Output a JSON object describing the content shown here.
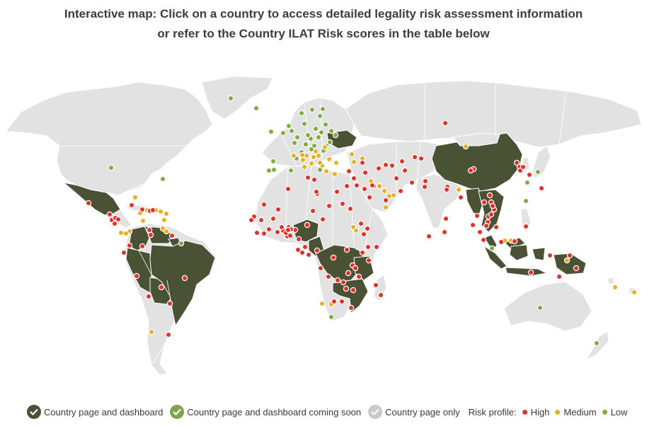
{
  "title": {
    "line1": "Interactive map: Click on a country to access detailed legality risk assessment information",
    "line2": "or refer to the Country ILAT Risk scores in the table below"
  },
  "legend": {
    "dashboard": {
      "label": "Country page and dashboard",
      "color": "#4a5235",
      "icon": "check-circle-icon"
    },
    "coming_soon": {
      "label": "Country page and dashboard coming soon",
      "color": "#7fa34e",
      "icon": "check-circle-icon"
    },
    "page_only": {
      "label": "Country page only",
      "color": "#c9c9c9",
      "icon": "check-circle-icon"
    },
    "risk_label": "Risk profile:",
    "high": {
      "label": "High",
      "color": "#e0312a"
    },
    "medium": {
      "label": "Medium",
      "color": "#e8b020"
    },
    "low": {
      "label": "Low",
      "color": "#7fae3f"
    }
  },
  "map": {
    "land_color": "#e2e2e2",
    "dashboard_color": "#4a5235",
    "dashboard_countries": [
      "Mexico",
      "Colombia",
      "Venezuela",
      "Guyana",
      "Peru",
      "Bolivia",
      "Brazil",
      "Nigeria",
      "Ukraine",
      "Cameroon",
      "Republic of the Congo",
      "DR Congo",
      "Tanzania",
      "Zambia",
      "Mozambique",
      "China",
      "Myanmar",
      "Laos",
      "Thailand",
      "Vietnam",
      "Cambodia",
      "Malaysia",
      "Indonesia",
      "Papua New Guinea"
    ],
    "markers": {
      "high": [
        [
          125,
          191
        ],
        [
          155,
          207
        ],
        [
          158,
          215
        ],
        [
          162,
          220
        ],
        [
          163,
          212
        ],
        [
          167,
          214
        ],
        [
          186,
          194
        ],
        [
          201,
          200
        ],
        [
          212,
          202
        ],
        [
          216,
          201
        ],
        [
          175,
          261
        ],
        [
          183,
          251
        ],
        [
          201,
          252
        ],
        [
          211,
          229
        ],
        [
          213,
          236
        ],
        [
          243,
          237
        ],
        [
          193,
          294
        ],
        [
          228,
          310
        ],
        [
          261,
          297
        ],
        [
          240,
          333
        ],
        [
          210,
          323
        ],
        [
          238,
          377
        ],
        [
          407,
          171
        ],
        [
          448,
          178
        ],
        [
          476,
          175
        ],
        [
          504,
          166
        ],
        [
          522,
          183
        ],
        [
          528,
          167
        ],
        [
          545,
          187
        ],
        [
          566,
          174
        ],
        [
          582,
          162
        ],
        [
          595,
          128
        ],
        [
          572,
          145
        ],
        [
          629,
          78
        ],
        [
          568,
          132
        ],
        [
          535,
          142
        ],
        [
          545,
          137
        ],
        [
          560,
          156
        ],
        [
          500,
          156
        ],
        [
          493,
          146
        ],
        [
          516,
          148
        ],
        [
          600,
          168
        ],
        [
          606,
          238
        ],
        [
          628,
          232
        ],
        [
          630,
          213
        ],
        [
          632,
          168
        ],
        [
          669,
          143
        ],
        [
          631,
          172
        ],
        [
          651,
          183
        ],
        [
          684,
          190
        ],
        [
          690,
          210
        ],
        [
          701,
          225
        ],
        [
          689,
          218
        ],
        [
          668,
          222
        ],
        [
          678,
          232
        ],
        [
          683,
          243
        ],
        [
          694,
          207
        ],
        [
          698,
          200
        ],
        [
          692,
          180
        ],
        [
          694,
          190
        ],
        [
          696,
          195
        ],
        [
          743,
          224
        ],
        [
          750,
          289
        ],
        [
          727,
          245
        ],
        [
          708,
          246
        ],
        [
          748,
          151
        ],
        [
          730,
          134
        ],
        [
          734,
          140
        ],
        [
          735,
          145
        ],
        [
          765,
          170
        ],
        [
          739,
          140
        ],
        [
          805,
          265
        ],
        [
          814,
          283
        ],
        [
          777,
          265
        ],
        [
          790,
          295
        ],
        [
          373,
          193
        ],
        [
          359,
          210
        ],
        [
          373,
          234
        ],
        [
          386,
          213
        ],
        [
          393,
          200
        ],
        [
          406,
          238
        ],
        [
          417,
          229
        ],
        [
          434,
          222
        ],
        [
          431,
          253
        ],
        [
          427,
          261
        ],
        [
          421,
          257
        ],
        [
          422,
          242
        ],
        [
          442,
          202
        ],
        [
          456,
          214
        ],
        [
          465,
          195
        ],
        [
          484,
          192
        ],
        [
          495,
          199
        ],
        [
          510,
          220
        ],
        [
          519,
          227
        ],
        [
          514,
          235
        ],
        [
          520,
          253
        ],
        [
          532,
          253
        ],
        [
          521,
          272
        ],
        [
          498,
          279
        ],
        [
          492,
          290
        ],
        [
          477,
          300
        ],
        [
          464,
          295
        ],
        [
          453,
          283
        ],
        [
          436,
          264
        ],
        [
          448,
          258
        ],
        [
          471,
          268
        ],
        [
          490,
          257
        ],
        [
          512,
          261
        ],
        [
          502,
          283
        ],
        [
          507,
          295
        ],
        [
          489,
          312
        ],
        [
          499,
          314
        ],
        [
          485,
          303
        ],
        [
          496,
          339
        ],
        [
          483,
          330
        ],
        [
          538,
          321
        ],
        [
          531,
          307
        ],
        [
          472,
          330
        ],
        [
          380,
          228
        ],
        [
          400,
          230
        ],
        [
          392,
          232
        ],
        [
          398,
          225
        ],
        [
          404,
          233
        ],
        [
          408,
          225
        ],
        [
          411,
          228
        ],
        [
          435,
          155
        ],
        [
          444,
          158
        ],
        [
          447,
          175
        ],
        [
          410,
          237
        ],
        [
          363,
          233
        ],
        [
          369,
          215
        ],
        [
          355,
          215
        ],
        [
          407,
          229
        ],
        [
          665,
          145
        ],
        [
          687,
          223
        ],
        [
          674,
          209
        ],
        [
          601,
          160
        ],
        [
          490,
          167
        ],
        [
          526,
          166
        ],
        [
          515,
          171
        ],
        [
          554,
          138
        ],
        [
          586,
          126
        ],
        [
          512,
          134
        ]
      ],
      "medium": [
        [
          191,
          183
        ],
        [
          208,
          201
        ],
        [
          220,
          201
        ],
        [
          227,
          203
        ],
        [
          235,
          206
        ],
        [
          232,
          215
        ],
        [
          230,
          227
        ],
        [
          235,
          231
        ],
        [
          198,
          205
        ],
        [
          202,
          216
        ],
        [
          183,
          231
        ],
        [
          178,
          234
        ],
        [
          171,
          233
        ],
        [
          214,
          373
        ],
        [
          455,
          138
        ],
        [
          465,
          129
        ],
        [
          461,
          146
        ],
        [
          459,
          112
        ],
        [
          475,
          134
        ],
        [
          473,
          150
        ],
        [
          497,
          122
        ],
        [
          512,
          128
        ],
        [
          524,
          160
        ],
        [
          536,
          167
        ],
        [
          543,
          174
        ],
        [
          550,
          181
        ],
        [
          556,
          180
        ],
        [
          545,
          197
        ],
        [
          658,
          111
        ],
        [
          648,
          172
        ],
        [
          713,
          244
        ],
        [
          722,
          244
        ],
        [
          801,
          272
        ],
        [
          869,
          310
        ],
        [
          896,
          317
        ],
        [
          500,
          133
        ],
        [
          468,
          334
        ],
        [
          455,
          333
        ],
        [
          499,
          225
        ],
        [
          503,
          230
        ],
        [
          428,
          130
        ],
        [
          430,
          140
        ],
        [
          446,
          118
        ],
        [
          450,
          124
        ],
        [
          452,
          134
        ],
        [
          443,
          126
        ],
        [
          440,
          135
        ],
        [
          433,
          124
        ],
        [
          415,
          124
        ],
        [
          427,
          123
        ]
      ],
      "low": [
        [
          326,
          43
        ],
        [
          362,
          57
        ],
        [
          426,
          64
        ],
        [
          441,
          59
        ],
        [
          456,
          58
        ],
        [
          430,
          79
        ],
        [
          452,
          68
        ],
        [
          460,
          80
        ],
        [
          420,
          98
        ],
        [
          400,
          92
        ],
        [
          383,
          90
        ],
        [
          408,
          82
        ],
        [
          386,
          132
        ],
        [
          380,
          145
        ],
        [
          157,
          141
        ],
        [
          230,
          157
        ],
        [
          256,
          248
        ],
        [
          695,
          255
        ],
        [
          745,
          162
        ],
        [
          760,
          147
        ],
        [
          763,
          339
        ],
        [
          843,
          389
        ],
        [
          444,
          110
        ],
        [
          457,
          117
        ],
        [
          461,
          110
        ],
        [
          440,
          115
        ],
        [
          432,
          108
        ],
        [
          439,
          100
        ],
        [
          416,
          106
        ],
        [
          468,
          352
        ],
        [
          411,
          145
        ],
        [
          419,
          128
        ],
        [
          426,
          119
        ],
        [
          435,
          95
        ],
        [
          454,
          91
        ],
        [
          468,
          89
        ],
        [
          474,
          95
        ],
        [
          466,
          105
        ],
        [
          450,
          98
        ],
        [
          446,
          86
        ],
        [
          743,
          188
        ],
        [
          452,
          144
        ],
        [
          412,
          89
        ],
        [
          387,
          144
        ]
      ]
    }
  }
}
